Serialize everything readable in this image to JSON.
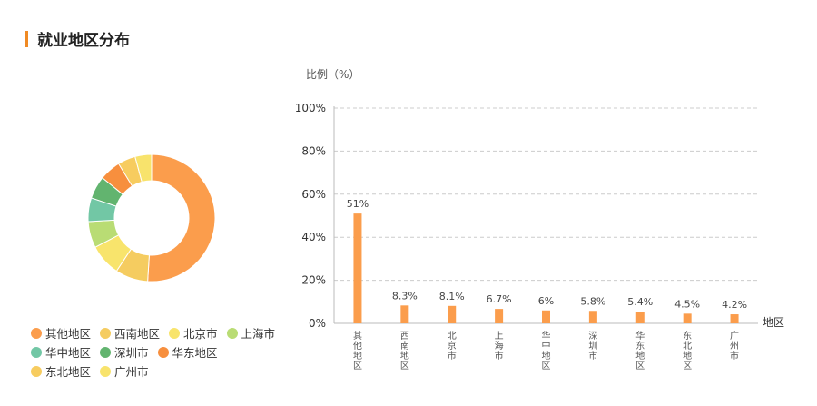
{
  "section": {
    "title": "就业地区分布"
  },
  "chart_data": [
    {
      "type": "pie",
      "style": "donut",
      "categories": [
        "其他地区",
        "西南地区",
        "北京市",
        "上海市",
        "华中地区",
        "深圳市",
        "华东地区",
        "东北地区",
        "广州市"
      ],
      "values": [
        51,
        8.3,
        8.1,
        6.7,
        6,
        5.8,
        5.4,
        4.5,
        4.2
      ],
      "colors": [
        "#fb9d4c",
        "#f5cc60",
        "#f8e46c",
        "#b9dc74",
        "#72c7a5",
        "#62b46f",
        "#f78f3e",
        "#f7cc5f",
        "#f8e36c"
      ],
      "legend_position": "bottom-left"
    },
    {
      "type": "bar",
      "categories": [
        "其他地区",
        "西南地区",
        "北京市",
        "上海市",
        "华中地区",
        "深圳市",
        "华东地区",
        "东北地区",
        "广州市"
      ],
      "values": [
        51,
        8.3,
        8.1,
        6.7,
        6,
        5.8,
        5.4,
        4.5,
        4.2
      ],
      "data_labels": [
        "51%",
        "8.3%",
        "8.1%",
        "6.7%",
        "6%",
        "5.8%",
        "5.4%",
        "4.5%",
        "4.2%"
      ],
      "ylabel": "比例（%）",
      "xlabel": "地区",
      "ylim": [
        0,
        100
      ],
      "yticks": [
        "0%",
        "20%",
        "40%",
        "60%",
        "80%",
        "100%"
      ],
      "ytick_values": [
        0,
        20,
        40,
        60,
        80,
        100
      ],
      "grid": true,
      "bar_color": "#fb9d4c"
    }
  ]
}
